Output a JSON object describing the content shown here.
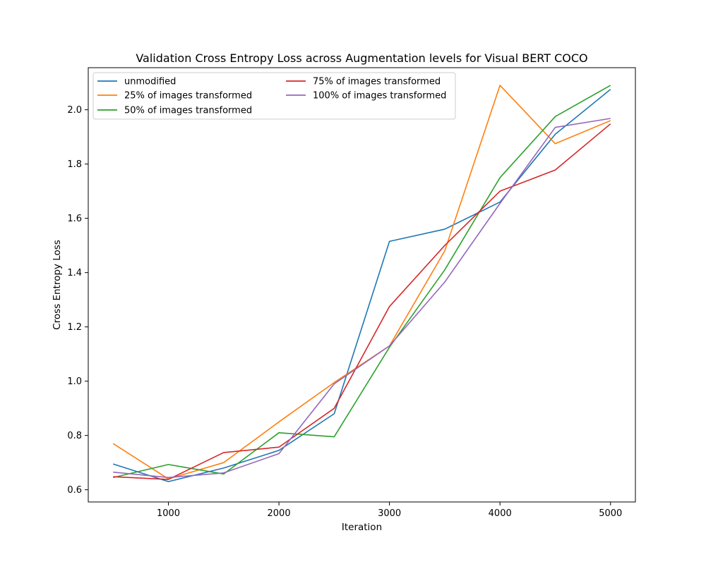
{
  "chart_data": {
    "type": "line",
    "title": "Validation Cross Entropy Loss across Augmentation levels for Visual BERT COCO",
    "xlabel": "Iteration",
    "ylabel": "Cross Entropy Loss",
    "x": [
      500,
      1000,
      1500,
      2000,
      2500,
      3000,
      3500,
      4000,
      4500,
      5000
    ],
    "xlim": [
      275,
      5225
    ],
    "ylim": [
      0.555,
      2.155
    ],
    "xticks": [
      1000,
      2000,
      3000,
      4000,
      5000
    ],
    "xtick_labels": [
      "1000",
      "2000",
      "3000",
      "4000",
      "5000"
    ],
    "yticks": [
      0.6,
      0.8,
      1.0,
      1.2,
      1.4,
      1.6,
      1.8,
      2.0
    ],
    "ytick_labels": [
      "0.6",
      "0.8",
      "1.0",
      "1.2",
      "1.4",
      "1.6",
      "1.8",
      "2.0"
    ],
    "grid": false,
    "legend_position": "top-left",
    "series": [
      {
        "name": "unmodified",
        "color": "#1f77b4",
        "values": [
          0.695,
          0.63,
          0.68,
          0.745,
          0.88,
          1.515,
          1.56,
          1.66,
          1.91,
          2.075
        ]
      },
      {
        "name": "25% of images transformed",
        "color": "#ff7f0e",
        "values": [
          0.77,
          0.64,
          0.7,
          0.85,
          0.995,
          1.13,
          1.48,
          2.09,
          1.875,
          1.96
        ]
      },
      {
        "name": "50% of images transformed",
        "color": "#2ca02c",
        "values": [
          0.645,
          0.693,
          0.658,
          0.81,
          0.795,
          1.125,
          1.41,
          1.75,
          1.975,
          2.09
        ]
      },
      {
        "name": "75% of images transformed",
        "color": "#d62728",
        "values": [
          0.648,
          0.638,
          0.737,
          0.757,
          0.9,
          1.275,
          1.5,
          1.7,
          1.778,
          1.948
        ]
      },
      {
        "name": "100% of images transformed",
        "color": "#9467bd",
        "values": [
          0.665,
          0.645,
          0.662,
          0.733,
          0.99,
          1.13,
          1.365,
          1.655,
          1.935,
          1.968
        ]
      }
    ]
  }
}
